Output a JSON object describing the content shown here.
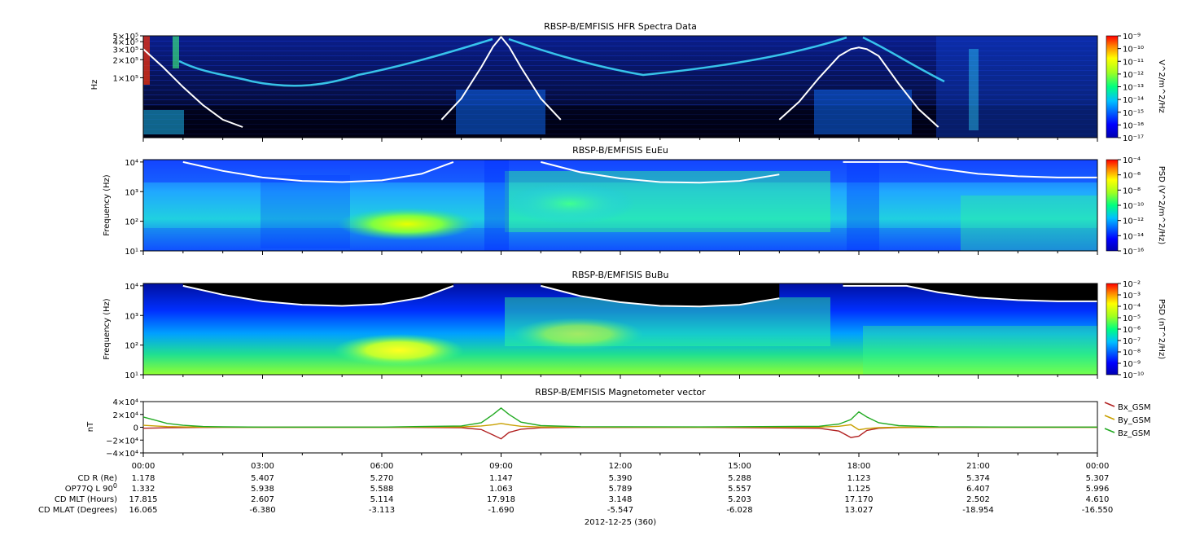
{
  "chart_data": [
    {
      "type": "heatmap",
      "title": "RBSP-B/EMFISIS  HFR Spectra Data",
      "ylabel": "Hz",
      "ytick_labels": [
        "5×10⁵",
        "4×10⁵",
        "3×10⁵",
        "2×10⁵",
        "1×10⁵"
      ],
      "ytick_values": [
        500000,
        400000,
        300000,
        200000,
        100000
      ],
      "ylim": [
        10000,
        500000
      ],
      "yscale": "log",
      "colorbar_label": "V^2/m^2/Hz",
      "colorbar_ticks": [
        "10⁻⁹",
        "10⁻¹⁰",
        "10⁻¹¹",
        "10⁻¹²",
        "10⁻¹³",
        "10⁻¹⁴",
        "10⁻¹⁵",
        "10⁻¹⁶",
        "10⁻¹⁷"
      ],
      "colorbar_range": [
        -17,
        -9
      ],
      "overlay_line": {
        "color": "#ffffff",
        "x_hours": [
          0,
          0.5,
          1,
          1.5,
          2,
          2.5,
          7.5,
          8,
          8.5,
          8.8,
          9,
          9.2,
          9.5,
          10,
          10.5,
          16,
          16.5,
          17,
          17.5,
          17.8,
          18,
          18.2,
          18.5,
          19,
          19.5,
          20
        ],
        "y_hz": [
          300000,
          150000,
          70000,
          35000,
          20000,
          15000,
          20000,
          45000,
          150000,
          330000,
          480000,
          330000,
          150000,
          45000,
          20000,
          20000,
          40000,
          100000,
          230000,
          300000,
          320000,
          300000,
          230000,
          80000,
          30000,
          15000
        ]
      }
    },
    {
      "type": "heatmap",
      "title": "RBSP-B/EMFISIS  EuEu",
      "ylabel": "Frequency (Hz)",
      "ytick_labels": [
        "10⁴",
        "10³",
        "10²",
        "10¹"
      ],
      "ytick_values": [
        10000,
        1000,
        100,
        10
      ],
      "ylim": [
        10,
        12000
      ],
      "yscale": "log",
      "colorbar_label": "PSD (V^2/m^2/Hz)",
      "colorbar_ticks": [
        "10⁻⁴",
        "10⁻⁶",
        "10⁻⁸",
        "10⁻¹⁰",
        "10⁻¹²",
        "10⁻¹⁴",
        "10⁻¹⁶"
      ],
      "colorbar_range": [
        -16,
        -4
      ],
      "overlay_line": {
        "color": "#ffffff",
        "x_hours": [
          1,
          2,
          3,
          4,
          5,
          6,
          7,
          7.8,
          10,
          11,
          12,
          13,
          14,
          15,
          16,
          17.6,
          19.2,
          20,
          21,
          22,
          23,
          24
        ],
        "y_hz": [
          10000,
          5000,
          3000,
          2300,
          2100,
          2400,
          4000,
          10000,
          10000,
          4500,
          2800,
          2100,
          2000,
          2300,
          3800,
          10000,
          10000,
          6000,
          4000,
          3300,
          3000,
          3000
        ]
      }
    },
    {
      "type": "heatmap",
      "title": "RBSP-B/EMFISIS  BuBu",
      "ylabel": "Frequency (Hz)",
      "ytick_labels": [
        "10⁴",
        "10³",
        "10²",
        "10¹"
      ],
      "ytick_values": [
        10000,
        1000,
        100,
        10
      ],
      "ylim": [
        10,
        12000
      ],
      "yscale": "log",
      "colorbar_label": "PSD (nT^2/Hz)",
      "colorbar_ticks": [
        "10⁻²",
        "10⁻³",
        "10⁻⁴",
        "10⁻⁵",
        "10⁻⁶",
        "10⁻⁷",
        "10⁻⁸",
        "10⁻⁹",
        "10⁻¹⁰"
      ],
      "colorbar_range": [
        -10,
        -2
      ],
      "overlay_line": {
        "color": "#ffffff",
        "x_hours": [
          1,
          2,
          3,
          4,
          5,
          6,
          7,
          7.8,
          10,
          11,
          12,
          13,
          14,
          15,
          16,
          17.6,
          19.2,
          20,
          21,
          22,
          23,
          24
        ],
        "y_hz": [
          10000,
          5000,
          3000,
          2300,
          2100,
          2400,
          4000,
          10000,
          10000,
          4500,
          2800,
          2100,
          2000,
          2300,
          3800,
          10000,
          10000,
          6000,
          4000,
          3300,
          3000,
          3000
        ]
      }
    },
    {
      "type": "line",
      "title": "RBSP-B/EMFISIS  Magnetometer vector",
      "ylabel": "nT",
      "ytick_labels": [
        "4×10⁴",
        "2×10⁴",
        "0",
        "−2×10⁴",
        "−4×10⁴"
      ],
      "ytick_values": [
        40000,
        20000,
        0,
        -20000,
        -40000
      ],
      "ylim": [
        -40000,
        40000
      ],
      "x_hours": [
        0,
        0.3,
        0.6,
        1,
        1.5,
        2,
        3,
        6,
        8,
        8.5,
        8.8,
        9,
        9.2,
        9.5,
        10,
        11,
        14,
        17,
        17.5,
        17.8,
        18,
        18.2,
        18.5,
        19,
        20,
        22,
        24
      ],
      "series": [
        {
          "name": "Bx_GSM",
          "color": "#b22222",
          "values": [
            -1500,
            -1200,
            -800,
            -500,
            -200,
            0,
            0,
            0,
            -600,
            -3500,
            -12000,
            -18000,
            -8000,
            -3000,
            -800,
            -300,
            -100,
            -1500,
            -6000,
            -16000,
            -14000,
            -5000,
            -1500,
            -400,
            -100,
            0,
            0
          ]
        },
        {
          "name": "By_GSM",
          "color": "#c8a000",
          "values": [
            3000,
            2000,
            1000,
            500,
            200,
            100,
            0,
            0,
            500,
            2000,
            4000,
            6000,
            4000,
            1500,
            400,
            200,
            0,
            300,
            1500,
            4000,
            -4000,
            -2000,
            -500,
            0,
            0,
            0,
            0
          ]
        },
        {
          "name": "Bz_GSM",
          "color": "#22aa22",
          "values": [
            16000,
            11000,
            6000,
            3000,
            1200,
            600,
            200,
            300,
            2000,
            7000,
            20000,
            30000,
            20000,
            8000,
            2500,
            900,
            500,
            1500,
            5000,
            12000,
            24000,
            16000,
            7000,
            2500,
            800,
            300,
            200
          ]
        }
      ]
    }
  ],
  "time_axis": {
    "tick_labels": [
      "00:00",
      "03:00",
      "06:00",
      "09:00",
      "12:00",
      "15:00",
      "18:00",
      "21:00",
      "00:00"
    ],
    "tick_hours": [
      0,
      3,
      6,
      9,
      12,
      15,
      18,
      21,
      24
    ],
    "date_label": "2012-12-25 (360)"
  },
  "ephemeris": {
    "rows": [
      {
        "label": "CD R (Re)",
        "values": [
          "1.178",
          "5.407",
          "5.270",
          "1.147",
          "5.390",
          "5.288",
          "1.123",
          "5.374",
          "5.307"
        ]
      },
      {
        "label": "OP77Q L 90",
        "sup": "0",
        "values": [
          "1.332",
          "5.938",
          "5.588",
          "1.063",
          "5.789",
          "5.557",
          "1.125",
          "6.407",
          "5.996"
        ]
      },
      {
        "label": "CD MLT (Hours)",
        "values": [
          "17.815",
          "2.607",
          "5.114",
          "17.918",
          "3.148",
          "5.203",
          "17.170",
          "2.502",
          "4.610"
        ]
      },
      {
        "label": "CD MLAT (Degrees)",
        "values": [
          "16.065",
          "-6.380",
          "-3.113",
          "-1.690",
          "-5.547",
          "-6.028",
          "13.027",
          "-18.954",
          "-16.550"
        ]
      }
    ]
  }
}
